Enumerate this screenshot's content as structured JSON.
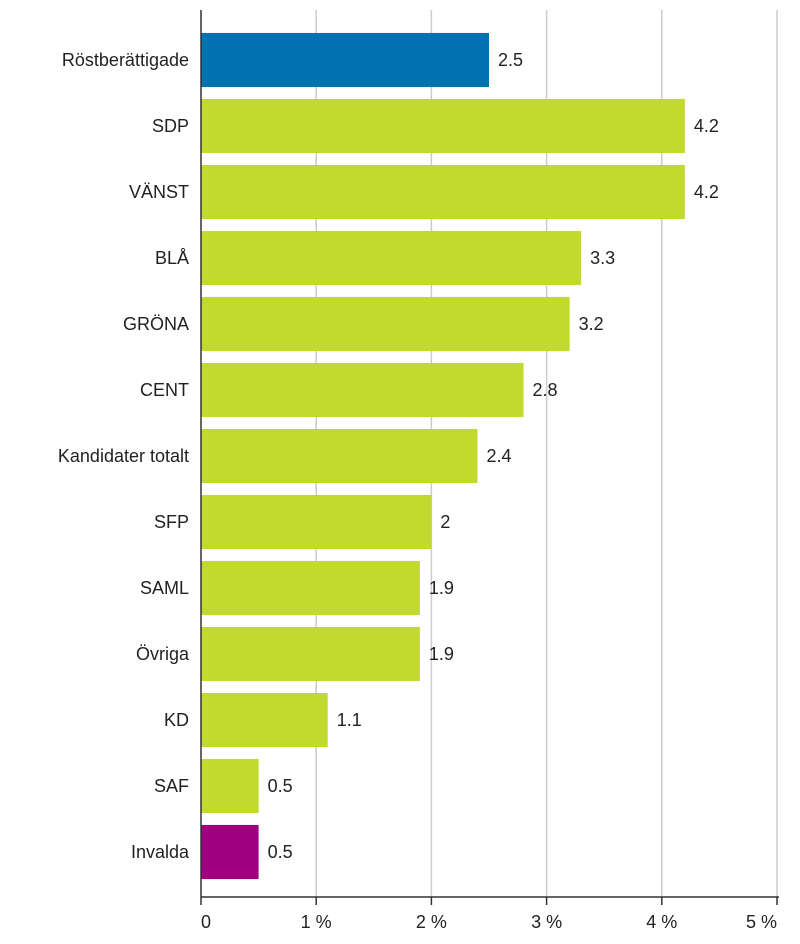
{
  "chart_data": {
    "type": "barh",
    "categories": [
      "Röstberättigade",
      "SDP",
      "VÄNST",
      "BLÅ",
      "GRÖNA",
      "CENT",
      "Kandidater totalt",
      "SFP",
      "SAML",
      "Övriga",
      "KD",
      "SAF",
      "Invalda"
    ],
    "values": [
      2.5,
      4.2,
      4.2,
      3.3,
      3.2,
      2.8,
      2.4,
      2,
      1.9,
      1.9,
      1.1,
      0.5,
      0.5
    ],
    "colors": [
      "#0073b0",
      "#c2d92e",
      "#c2d92e",
      "#c2d92e",
      "#c2d92e",
      "#c2d92e",
      "#c2d92e",
      "#c2d92e",
      "#c2d92e",
      "#c2d92e",
      "#c2d92e",
      "#c2d92e",
      "#a0007f"
    ],
    "xlim": [
      0,
      5
    ],
    "xticks": [
      0,
      {
        "value": 1,
        "label": "1 %"
      },
      {
        "value": 2,
        "label": "2 %"
      },
      {
        "value": 3,
        "label": "3 %"
      },
      {
        "value": 4,
        "label": "4 %"
      },
      {
        "value": 5,
        "label": "5 %"
      }
    ],
    "grid": true
  }
}
